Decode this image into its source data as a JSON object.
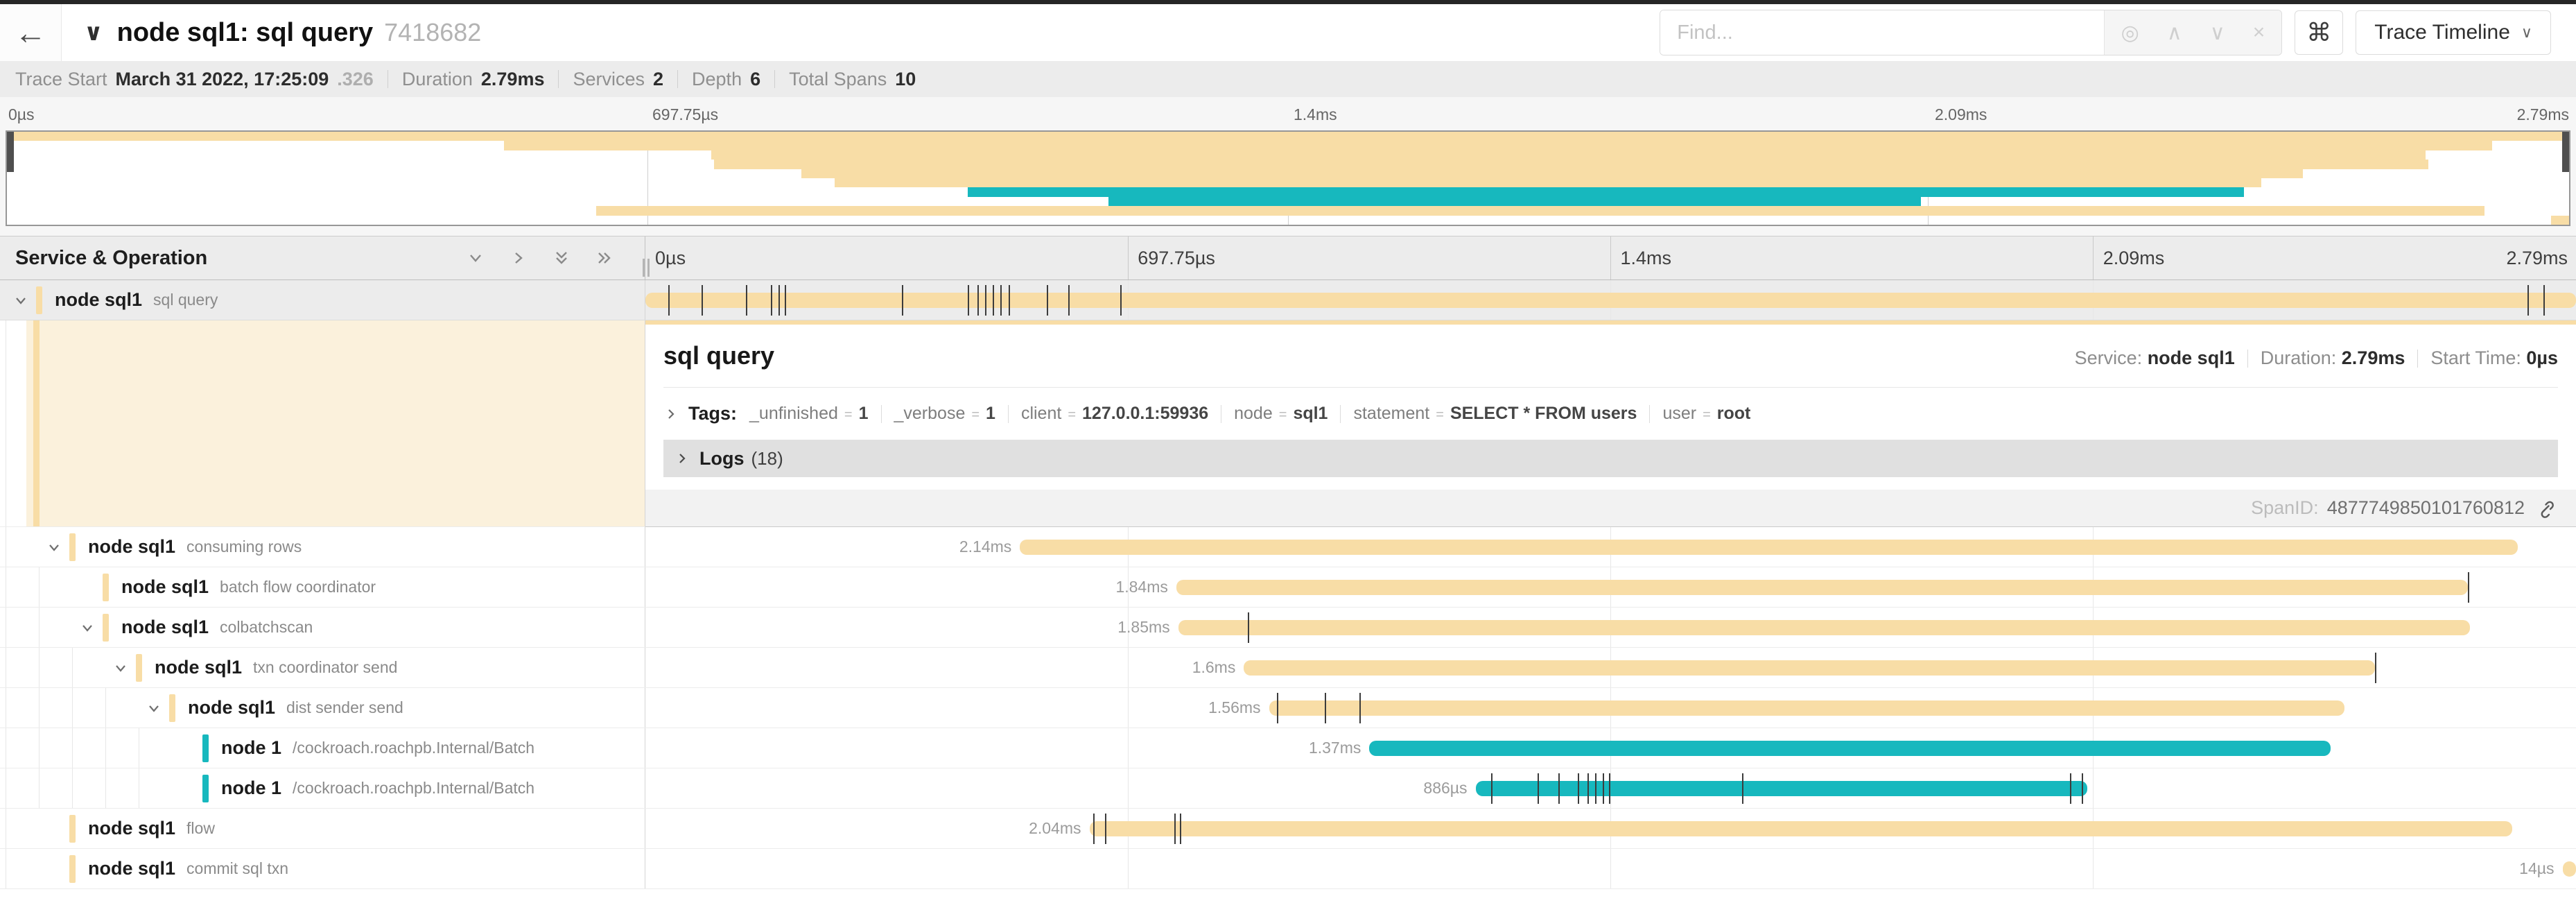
{
  "colors": {
    "tan": "#F8DDA6",
    "teal": "#17B8BE",
    "tick": "#3c3c3c",
    "cream": "#FBF1DC"
  },
  "topbar": {
    "back_icon": "←",
    "collapse_icon": "∨",
    "title": "node sql1: sql query",
    "trace_id": "7418682",
    "find_placeholder": "Find...",
    "match_icon": "◎",
    "prev_icon": "∧",
    "next_icon": "∨",
    "clear_icon": "×",
    "shortcut_icon": "⌘",
    "view_selector_label": "Trace Timeline",
    "view_selector_caret": "∨"
  },
  "meta": {
    "items": [
      {
        "label": "Trace Start",
        "value": "March 31 2022, 17:25:09",
        "suffix": ".326"
      },
      {
        "label": "Duration",
        "value": "2.79ms",
        "suffix": ""
      },
      {
        "label": "Services",
        "value": "2",
        "suffix": ""
      },
      {
        "label": "Depth",
        "value": "6",
        "suffix": ""
      },
      {
        "label": "Total Spans",
        "value": "10",
        "suffix": ""
      }
    ]
  },
  "minimap": {
    "axis_labels": [
      {
        "text": "0µs",
        "pos": 0
      },
      {
        "text": "697.75µs",
        "pos": 0.25
      },
      {
        "text": "1.4ms",
        "pos": 0.5
      },
      {
        "text": "2.09ms",
        "pos": 0.75
      },
      {
        "text": "2.79ms",
        "pos": 1
      }
    ]
  },
  "grid": {
    "left_header": "Service & Operation",
    "ticks": [
      {
        "text": "0µs",
        "pos": 0
      },
      {
        "text": "697.75µs",
        "pos": 0.25
      },
      {
        "text": "1.4ms",
        "pos": 0.5
      },
      {
        "text": "2.09ms",
        "pos": 0.75
      },
      {
        "text": "2.79ms",
        "pos": 1
      }
    ]
  },
  "spans": [
    {
      "service": "node sql1",
      "operation": "sql query",
      "level": 0,
      "color": "tan",
      "chevron": true,
      "selected": true,
      "start": 0.0,
      "end": 1.0,
      "label": "",
      "ticks": [
        0.012,
        0.029,
        0.052,
        0.065,
        0.069,
        0.072,
        0.133,
        0.167,
        0.172,
        0.176,
        0.18,
        0.184,
        0.188,
        0.208,
        0.219,
        0.246,
        0.975,
        0.983
      ]
    },
    {
      "service": "node sql1",
      "operation": "consuming rows",
      "level": 1,
      "color": "tan",
      "chevron": true,
      "selected": false,
      "start": 0.194,
      "end": 0.97,
      "label": "2.14ms",
      "ticks": []
    },
    {
      "service": "node sql1",
      "operation": "batch flow coordinator",
      "level": 2,
      "color": "tan",
      "chevron": false,
      "selected": false,
      "start": 0.275,
      "end": 0.944,
      "label": "1.84ms",
      "ticks": [
        0.944
      ]
    },
    {
      "service": "node sql1",
      "operation": "colbatchscan",
      "level": 2,
      "color": "tan",
      "chevron": true,
      "selected": false,
      "start": 0.276,
      "end": 0.945,
      "label": "1.85ms",
      "ticks": [
        0.312
      ]
    },
    {
      "service": "node sql1",
      "operation": "txn coordinator send",
      "level": 3,
      "color": "tan",
      "chevron": true,
      "selected": false,
      "start": 0.31,
      "end": 0.896,
      "label": "1.6ms",
      "ticks": [
        0.896
      ]
    },
    {
      "service": "node sql1",
      "operation": "dist sender send",
      "level": 4,
      "color": "tan",
      "chevron": true,
      "selected": false,
      "start": 0.323,
      "end": 0.88,
      "label": "1.56ms",
      "ticks": [
        0.327,
        0.352,
        0.37
      ]
    },
    {
      "service": "node 1",
      "operation": "/cockroach.roachpb.Internal/Batch",
      "level": 5,
      "color": "teal",
      "chevron": false,
      "selected": false,
      "start": 0.375,
      "end": 0.873,
      "label": "1.37ms",
      "ticks": []
    },
    {
      "service": "node 1",
      "operation": "/cockroach.roachpb.Internal/Batch",
      "level": 5,
      "color": "teal",
      "chevron": false,
      "selected": false,
      "start": 0.43,
      "end": 0.747,
      "label": "886µs",
      "ticks": [
        0.438,
        0.462,
        0.473,
        0.483,
        0.488,
        0.492,
        0.496,
        0.499,
        0.568,
        0.738,
        0.744
      ]
    },
    {
      "service": "node sql1",
      "operation": "flow",
      "level": 1,
      "color": "tan",
      "chevron": false,
      "selected": false,
      "start": 0.23,
      "end": 0.967,
      "label": "2.04ms",
      "ticks": [
        0.232,
        0.238,
        0.274,
        0.277
      ]
    },
    {
      "service": "node sql1",
      "operation": "commit sql txn",
      "level": 1,
      "color": "tan",
      "chevron": false,
      "selected": false,
      "start": 0.993,
      "end": 1.0,
      "label": "14µs",
      "ticks": []
    }
  ],
  "detail": {
    "title": "sql query",
    "overview": [
      {
        "label": "Service:",
        "value": "node sql1"
      },
      {
        "label": "Duration:",
        "value": "2.79ms"
      },
      {
        "label": "Start Time:",
        "value": "0µs"
      }
    ],
    "tags_label": "Tags:",
    "tags": [
      {
        "key": "_unfinished",
        "value": "1"
      },
      {
        "key": "_verbose",
        "value": "1"
      },
      {
        "key": "client",
        "value": "127.0.0.1:59936"
      },
      {
        "key": "node",
        "value": "sql1"
      },
      {
        "key": "statement",
        "value": "SELECT * FROM users"
      },
      {
        "key": "user",
        "value": "root"
      }
    ],
    "logs_label": "Logs",
    "logs_count": "(18)",
    "span_id_label": "SpanID:",
    "span_id": "4877749850101760812"
  }
}
